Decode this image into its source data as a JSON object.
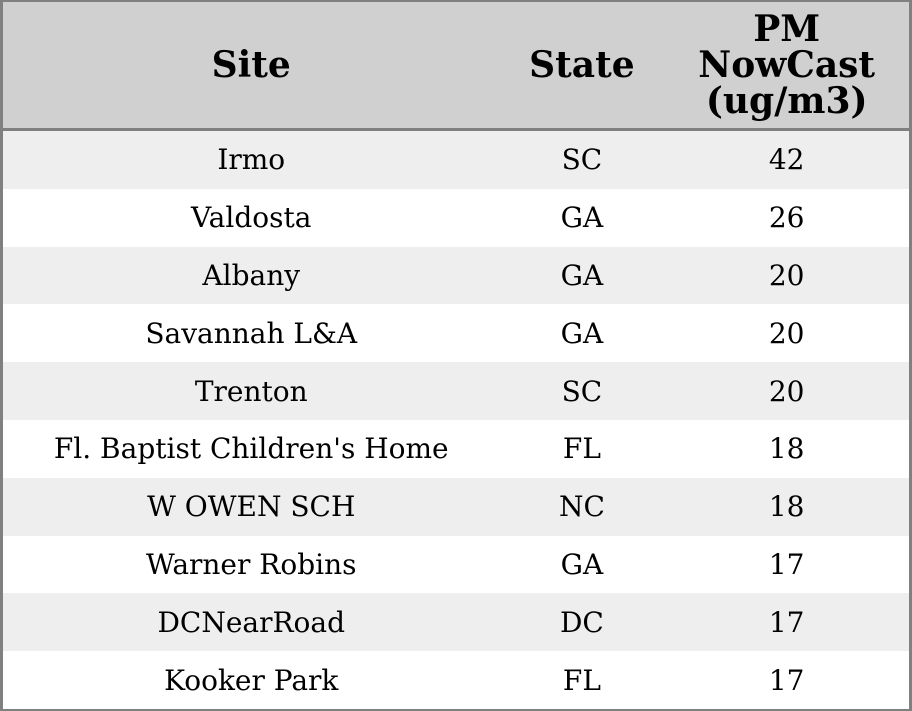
{
  "colors": {
    "border": "#808080",
    "header_bg": "#d0d0d0",
    "row_bg": "#ffffff",
    "row_alt_bg": "#eeeeee",
    "text": "#000000"
  },
  "header": {
    "site_label": "Site",
    "state_label": "State",
    "pm_label_full": "PM NowCast (ug/m3)",
    "pm_lines": [
      "PM",
      "NowCast",
      "(ug/m3)"
    ]
  },
  "rows": [
    {
      "site": "Irmo",
      "state": "SC",
      "pm": "42"
    },
    {
      "site": "Valdosta",
      "state": "GA",
      "pm": "26"
    },
    {
      "site": "Albany",
      "state": "GA",
      "pm": "20"
    },
    {
      "site": "Savannah L&A",
      "state": "GA",
      "pm": "20"
    },
    {
      "site": "Trenton",
      "state": "SC",
      "pm": "20"
    },
    {
      "site": "Fl. Baptist Children's Home",
      "state": "FL",
      "pm": "18"
    },
    {
      "site": "W OWEN SCH",
      "state": "NC",
      "pm": "18"
    },
    {
      "site": "Warner Robins",
      "state": "GA",
      "pm": "17"
    },
    {
      "site": "DCNearRoad",
      "state": "DC",
      "pm": "17"
    },
    {
      "site": "Kooker Park",
      "state": "FL",
      "pm": "17"
    }
  ],
  "chart_data": {
    "type": "table",
    "title": "",
    "columns": [
      "Site",
      "State",
      "PM NowCast (ug/m3)"
    ],
    "rows": [
      [
        "Irmo",
        "SC",
        42
      ],
      [
        "Valdosta",
        "GA",
        26
      ],
      [
        "Albany",
        "GA",
        20
      ],
      [
        "Savannah L&A",
        "GA",
        20
      ],
      [
        "Trenton",
        "SC",
        20
      ],
      [
        "Fl. Baptist Children's Home",
        "FL",
        18
      ],
      [
        "W OWEN SCH",
        "NC",
        18
      ],
      [
        "Warner Robins",
        "GA",
        17
      ],
      [
        "DCNearRoad",
        "DC",
        17
      ],
      [
        "Kooker Park",
        "FL",
        17
      ]
    ],
    "layout": {
      "striped_rows": true,
      "header_background": "#d0d0d0",
      "value_sort": "descending"
    }
  }
}
